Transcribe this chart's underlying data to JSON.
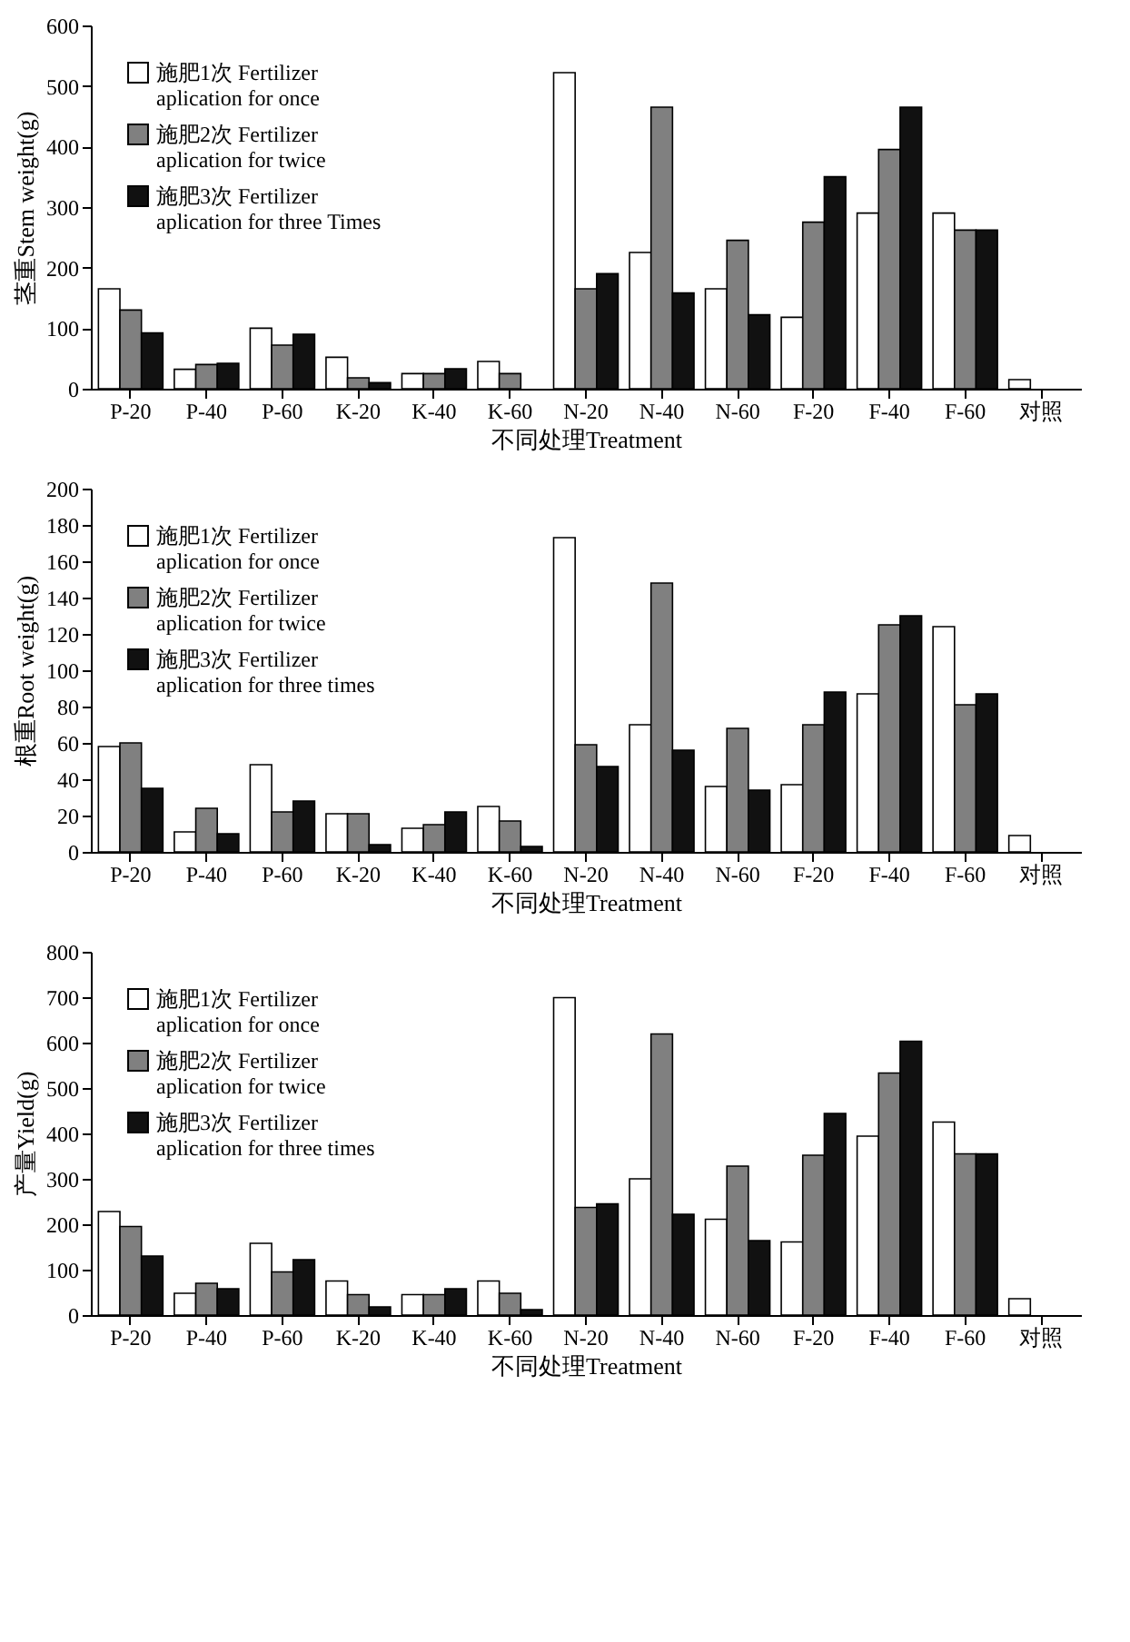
{
  "chart_data": [
    {
      "type": "bar",
      "ylabel": "茎重Stem weight(g)",
      "xlabel": "不同处理Treatment",
      "legend": "top left",
      "grid": false,
      "categories": [
        "P-20",
        "P-40",
        "P-60",
        "K-20",
        "K-40",
        "K-60",
        "N-20",
        "N-40",
        "N-60",
        "F-20",
        "F-40",
        "F-60",
        "对照"
      ],
      "ylim": [
        0,
        600
      ],
      "yticks": [
        0,
        100,
        200,
        300,
        400,
        500,
        600
      ],
      "series": [
        {
          "name": "施肥1次 Fertilizer aplication for once",
          "color": "#ffffff",
          "values": [
            165,
            32,
            100,
            52,
            25,
            45,
            522,
            225,
            165,
            118,
            290,
            290,
            15
          ]
        },
        {
          "name": "施肥2次 Fertilizer aplication for twice",
          "color": "#808080",
          "values": [
            130,
            40,
            72,
            18,
            25,
            25,
            165,
            465,
            245,
            275,
            395,
            262,
            null
          ]
        },
        {
          "name": "施肥3次 Fertilizer aplication for three Times",
          "color": "#111111",
          "values": [
            92,
            42,
            90,
            10,
            33,
            null,
            190,
            158,
            122,
            350,
            465,
            262,
            null
          ]
        }
      ]
    },
    {
      "type": "bar",
      "ylabel": "根重Root weight(g)",
      "xlabel": "不同处理Treatment",
      "legend": "top left",
      "grid": false,
      "categories": [
        "P-20",
        "P-40",
        "P-60",
        "K-20",
        "K-40",
        "K-60",
        "N-20",
        "N-40",
        "N-60",
        "F-20",
        "F-40",
        "F-60",
        "对照"
      ],
      "ylim": [
        0,
        200
      ],
      "yticks": [
        0,
        20,
        40,
        60,
        80,
        100,
        120,
        140,
        160,
        180,
        200
      ],
      "series": [
        {
          "name": "施肥1次 Fertilizer aplication for once",
          "color": "#ffffff",
          "values": [
            58,
            11,
            48,
            21,
            13,
            25,
            173,
            70,
            36,
            37,
            87,
            124,
            9
          ]
        },
        {
          "name": "施肥2次 Fertilizer aplication for twice",
          "color": "#808080",
          "values": [
            60,
            24,
            22,
            21,
            15,
            17,
            59,
            148,
            68,
            70,
            125,
            81,
            null
          ]
        },
        {
          "name": "施肥3次 Fertilizer aplication for three times",
          "color": "#111111",
          "values": [
            35,
            10,
            28,
            4,
            22,
            3,
            47,
            56,
            34,
            88,
            130,
            87,
            null
          ]
        }
      ]
    },
    {
      "type": "bar",
      "ylabel": "产量Yield(g)",
      "xlabel": "不同处理Treatment",
      "legend": "top left",
      "grid": false,
      "categories": [
        "P-20",
        "P-40",
        "P-60",
        "K-20",
        "K-40",
        "K-60",
        "N-20",
        "N-40",
        "N-60",
        "F-20",
        "F-40",
        "F-60",
        "对照"
      ],
      "ylim": [
        0,
        800
      ],
      "yticks": [
        0,
        100,
        200,
        300,
        400,
        500,
        600,
        700,
        800
      ],
      "series": [
        {
          "name": "施肥1次 Fertilizer aplication for once",
          "color": "#ffffff",
          "values": [
            228,
            48,
            158,
            75,
            45,
            75,
            699,
            300,
            211,
            161,
            394,
            425,
            36
          ]
        },
        {
          "name": "施肥2次 Fertilizer aplication for twice",
          "color": "#808080",
          "values": [
            195,
            70,
            95,
            45,
            45,
            48,
            237,
            619,
            328,
            352,
            533,
            355,
            null
          ]
        },
        {
          "name": "施肥3次 Fertilizer aplication for three times",
          "color": "#111111",
          "values": [
            130,
            58,
            122,
            18,
            58,
            12,
            245,
            222,
            164,
            444,
            603,
            355,
            null
          ]
        }
      ]
    }
  ]
}
